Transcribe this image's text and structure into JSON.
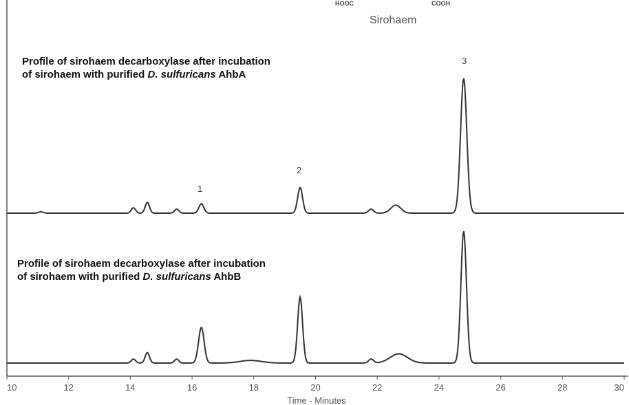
{
  "header": {
    "left_group": "HOOC",
    "right_group": "COOH",
    "compound": "Sirohaem"
  },
  "profiles": [
    {
      "line1": "Profile of sirohaem decarboxylase after incubation",
      "line2_a": "of sirohaem with purified ",
      "line2_b": "D. sulfuricans",
      "line2_c": " AhbA"
    },
    {
      "line1": "Profile of sirohaem decarboxylase after incubation",
      "line2_a": "of sirohaem with purified ",
      "line2_b": "D. sulfuricans",
      "line2_c": " AhbB"
    }
  ],
  "peaks": [
    "1",
    "2",
    "3"
  ],
  "chart_data": {
    "type": "line",
    "title": "",
    "xlabel": "Time - Minutes",
    "ylabel": "",
    "xlim": [
      10,
      30
    ],
    "xticks": [
      "10",
      "12",
      "14",
      "16",
      "18",
      "20",
      "22",
      "24",
      "26",
      "28",
      "30"
    ],
    "grid": false,
    "series": [
      {
        "baseline": 0,
        "peaks": [
          {
            "x": 11.1,
            "h": 0.01,
            "w": 0.08
          },
          {
            "x": 14.1,
            "h": 0.04,
            "w": 0.07
          },
          {
            "x": 14.55,
            "h": 0.08,
            "w": 0.07
          },
          {
            "x": 15.5,
            "h": 0.03,
            "w": 0.07
          },
          {
            "x": 16.3,
            "h": 0.07,
            "w": 0.08
          },
          {
            "x": 19.5,
            "h": 0.19,
            "w": 0.08
          },
          {
            "x": 21.8,
            "h": 0.03,
            "w": 0.08
          },
          {
            "x": 22.6,
            "h": 0.06,
            "w": 0.16
          },
          {
            "x": 24.8,
            "h": 1.0,
            "w": 0.1
          }
        ]
      },
      {
        "baseline": 0,
        "peaks": [
          {
            "x": 14.1,
            "h": 0.03,
            "w": 0.07
          },
          {
            "x": 14.55,
            "h": 0.08,
            "w": 0.07
          },
          {
            "x": 15.5,
            "h": 0.03,
            "w": 0.07
          },
          {
            "x": 16.3,
            "h": 0.27,
            "w": 0.09
          },
          {
            "x": 17.9,
            "h": 0.02,
            "w": 0.35
          },
          {
            "x": 19.5,
            "h": 0.5,
            "w": 0.08
          },
          {
            "x": 21.8,
            "h": 0.03,
            "w": 0.08
          },
          {
            "x": 22.7,
            "h": 0.07,
            "w": 0.28
          },
          {
            "x": 24.8,
            "h": 1.0,
            "w": 0.09
          }
        ]
      }
    ]
  }
}
